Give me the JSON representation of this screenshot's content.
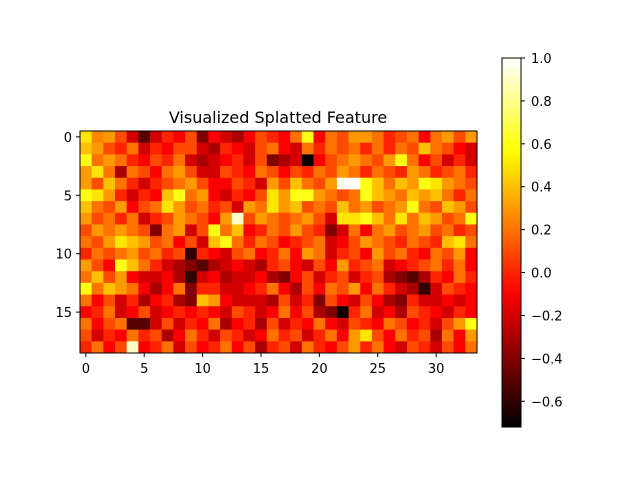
{
  "chart_data": {
    "type": "heatmap",
    "title": "Visualized Splatted Feature",
    "xlabel": "",
    "ylabel": "",
    "n_rows": 19,
    "n_cols": 34,
    "x_ticks": [
      0,
      5,
      10,
      15,
      20,
      25,
      30
    ],
    "y_ticks": [
      0,
      5,
      10,
      15
    ],
    "y_axis_direction": "top-to-bottom",
    "grid": false,
    "colormap": "hot",
    "colorbar": {
      "vmin": -0.72,
      "vmax": 1.0,
      "ticks": [
        -0.6,
        -0.4,
        -0.2,
        0.0,
        0.2,
        0.4,
        0.6,
        0.8,
        1.0
      ],
      "tick_labels": [
        "−0.6",
        "−0.4",
        "−0.2",
        "0.0",
        "0.2",
        "0.4",
        "0.6",
        "0.8",
        "1.0"
      ],
      "placement": "right"
    },
    "values": [
      [
        0.5,
        0.25,
        0.3,
        0.1,
        -0.2,
        -0.5,
        -0.2,
        0.0,
        -0.1,
        0.1,
        -0.4,
        -0.1,
        -0.2,
        -0.3,
        -0.1,
        0.1,
        0.0,
        -0.1,
        0.2,
        0.6,
        -0.1,
        0.2,
        0.1,
        0.3,
        0.3,
        0.2,
        0.0,
        0.1,
        0.2,
        -0.1,
        0.2,
        0.3,
        0.1,
        0.3
      ],
      [
        0.4,
        0.3,
        0.1,
        0.0,
        0.2,
        -0.2,
        0.0,
        -0.1,
        0.1,
        0.1,
        -0.2,
        -0.3,
        0.0,
        -0.1,
        -0.2,
        0.1,
        0.2,
        -0.1,
        -0.2,
        0.2,
        0.0,
        0.2,
        0.1,
        0.2,
        0.0,
        0.2,
        0.0,
        0.2,
        0.1,
        0.4,
        0.2,
        0.1,
        -0.1,
        -0.2
      ],
      [
        0.6,
        0.2,
        0.3,
        0.2,
        0.0,
        -0.1,
        0.1,
        0.0,
        0.2,
        -0.2,
        -0.3,
        -0.2,
        -0.1,
        0.0,
        -0.2,
        0.1,
        -0.4,
        -0.3,
        -0.2,
        -0.7,
        -0.1,
        0.1,
        0.2,
        0.3,
        0.2,
        0.1,
        0.3,
        0.6,
        0.2,
        -0.1,
        0.1,
        -0.2,
        0.0,
        -0.2
      ],
      [
        0.3,
        0.5,
        0.2,
        -0.3,
        0.2,
        0.1,
        -0.1,
        0.2,
        0.3,
        0.1,
        -0.2,
        -0.2,
        0.1,
        0.0,
        -0.1,
        0.2,
        0.1,
        -0.1,
        0.1,
        0.0,
        0.2,
        0.1,
        0.3,
        0.2,
        0.0,
        0.2,
        0.1,
        0.0,
        0.3,
        0.2,
        0.0,
        0.1,
        0.2,
        0.0
      ],
      [
        0.3,
        0.1,
        0.4,
        0.2,
        0.0,
        -0.2,
        0.0,
        0.1,
        0.2,
        0.3,
        0.1,
        -0.1,
        -0.1,
        0.1,
        0.0,
        -0.2,
        0.3,
        0.1,
        0.4,
        0.2,
        0.1,
        0.3,
        1.0,
        1.0,
        0.6,
        0.4,
        0.2,
        0.4,
        0.3,
        0.6,
        0.5,
        0.3,
        0.2,
        0.1
      ],
      [
        0.6,
        0.5,
        0.3,
        0.0,
        -0.2,
        0.0,
        -0.1,
        0.4,
        0.6,
        0.2,
        0.3,
        -0.1,
        -0.2,
        0.0,
        -0.1,
        0.1,
        0.5,
        0.3,
        0.6,
        0.6,
        0.3,
        0.2,
        0.1,
        0.2,
        0.6,
        0.4,
        0.3,
        0.2,
        0.4,
        0.3,
        0.4,
        0.2,
        0.0,
        0.2
      ],
      [
        0.4,
        0.2,
        0.1,
        0.3,
        -0.1,
        0.1,
        0.2,
        0.5,
        0.3,
        0.1,
        0.2,
        0.0,
        0.1,
        -0.2,
        0.3,
        0.2,
        0.5,
        0.3,
        0.4,
        0.1,
        0.2,
        0.1,
        0.4,
        0.2,
        0.3,
        0.1,
        0.2,
        0.3,
        0.6,
        0.2,
        0.1,
        0.4,
        0.3,
        0.1
      ],
      [
        0.3,
        0.1,
        0.2,
        0.0,
        0.2,
        -0.2,
        0.0,
        0.1,
        0.3,
        0.2,
        0.1,
        -0.1,
        0.3,
        0.9,
        0.1,
        0.3,
        0.2,
        0.1,
        0.2,
        0.3,
        0.1,
        -0.2,
        0.5,
        0.5,
        0.6,
        0.4,
        0.2,
        0.5,
        0.2,
        0.4,
        0.3,
        0.1,
        0.2,
        0.6
      ],
      [
        0.1,
        0.3,
        0.2,
        0.3,
        0.2,
        0.1,
        -0.4,
        0.2,
        0.3,
        -0.2,
        0.1,
        0.6,
        0.2,
        0.4,
        -0.1,
        0.0,
        0.2,
        0.1,
        0.3,
        0.1,
        0.0,
        -0.4,
        -0.2,
        0.2,
        -0.1,
        0.2,
        0.3,
        0.1,
        0.2,
        0.3,
        0.1,
        0.2,
        0.0,
        0.1
      ],
      [
        0.2,
        0.1,
        0.3,
        0.5,
        0.4,
        0.3,
        0.1,
        0.2,
        -0.1,
        0.1,
        -0.2,
        0.4,
        0.6,
        0.2,
        0.0,
        0.2,
        0.1,
        -0.1,
        0.0,
        0.1,
        0.2,
        -0.2,
        -0.1,
        0.1,
        0.3,
        0.2,
        0.1,
        0.0,
        0.2,
        0.1,
        0.0,
        0.4,
        0.5,
        0.2
      ],
      [
        0.0,
        0.2,
        0.1,
        0.2,
        0.3,
        0.1,
        0.2,
        0.0,
        0.1,
        -0.6,
        0.0,
        -0.1,
        -0.2,
        0.1,
        0.2,
        -0.1,
        0.0,
        0.2,
        -0.1,
        0.3,
        0.2,
        -0.2,
        0.0,
        0.1,
        -0.1,
        0.3,
        0.1,
        0.2,
        0.0,
        -0.1,
        0.2,
        0.1,
        0.3,
        -0.1
      ],
      [
        0.3,
        0.1,
        -0.1,
        0.6,
        0.4,
        0.2,
        0.0,
        -0.2,
        -0.3,
        -0.4,
        -0.5,
        -0.3,
        -0.2,
        -0.1,
        -0.2,
        -0.3,
        0.0,
        0.1,
        -0.1,
        -0.2,
        0.1,
        -0.1,
        0.3,
        0.0,
        0.1,
        0.2,
        -0.2,
        -0.1,
        0.0,
        0.1,
        0.2,
        0.0,
        0.2,
        -0.1
      ],
      [
        0.2,
        0.4,
        0.1,
        0.3,
        -0.1,
        -0.2,
        -0.2,
        -0.1,
        -0.3,
        -0.6,
        -0.2,
        -0.1,
        -0.3,
        -0.2,
        -0.2,
        -0.1,
        -0.3,
        -0.4,
        -0.1,
        0.1,
        -0.2,
        0.0,
        0.1,
        -0.2,
        0.0,
        0.1,
        -0.3,
        -0.4,
        -0.5,
        -0.3,
        0.0,
        -0.1,
        0.2,
        0.0
      ],
      [
        0.6,
        0.2,
        0.4,
        0.3,
        0.2,
        -0.1,
        -0.3,
        -0.1,
        0.2,
        -0.4,
        0.0,
        0.0,
        -0.2,
        -0.2,
        -0.1,
        0.0,
        0.2,
        -0.1,
        -0.3,
        0.1,
        -0.1,
        0.2,
        0.1,
        0.3,
        -0.1,
        0.2,
        0.0,
        -0.2,
        -0.3,
        -0.6,
        -0.2,
        0.1,
        0.0,
        -0.1
      ],
      [
        0.2,
        -0.1,
        0.1,
        -0.2,
        0.0,
        -0.3,
        -0.1,
        0.0,
        -0.3,
        -0.4,
        0.4,
        0.3,
        -0.1,
        -0.2,
        -0.2,
        -0.2,
        -0.3,
        0.1,
        -0.2,
        0.0,
        -0.4,
        0.1,
        -0.1,
        -0.2,
        0.1,
        -0.1,
        -0.3,
        -0.4,
        0.0,
        -0.2,
        -0.2,
        -0.1,
        -0.2,
        -0.1
      ],
      [
        -0.1,
        0.0,
        0.2,
        -0.2,
        -0.1,
        0.1,
        -0.2,
        -0.1,
        0.0,
        -0.1,
        0.0,
        -0.1,
        -0.2,
        0.1,
        0.0,
        -0.2,
        -0.1,
        0.2,
        -0.1,
        0.1,
        -0.3,
        -0.4,
        -0.7,
        0.0,
        0.2,
        -0.2,
        -0.1,
        -0.3,
        0.1,
        0.0,
        -0.1,
        -0.2,
        0.0,
        -0.1
      ],
      [
        0.2,
        -0.1,
        0.1,
        0.2,
        -0.5,
        -0.5,
        -0.2,
        0.1,
        -0.2,
        0.0,
        -0.1,
        0.2,
        -0.3,
        -0.1,
        0.0,
        -0.3,
        0.1,
        -0.2,
        0.0,
        -0.1,
        0.2,
        -0.1,
        -0.2,
        0.1,
        0.0,
        -0.1,
        0.2,
        0.1,
        -0.1,
        0.0,
        -0.2,
        0.1,
        0.3,
        0.6
      ],
      [
        0.1,
        -0.2,
        0.0,
        -0.1,
        0.2,
        0.0,
        0.1,
        -0.3,
        -0.1,
        0.2,
        0.0,
        -0.2,
        0.1,
        0.0,
        -0.2,
        -0.1,
        0.2,
        0.0,
        0.1,
        -0.2,
        0.0,
        0.2,
        -0.1,
        0.3,
        0.5,
        0.1,
        -0.1,
        0.2,
        0.0,
        0.1,
        -0.3,
        0.2,
        -0.1,
        0.3
      ],
      [
        0.0,
        0.2,
        -0.1,
        0.1,
        0.9,
        -0.1,
        0.0,
        0.2,
        -0.2,
        0.1,
        -0.1,
        0.0,
        0.2,
        -0.1,
        0.1,
        -0.3,
        0.0,
        0.1,
        -0.2,
        0.2,
        0.0,
        -0.1,
        0.1,
        0.3,
        0.0,
        0.2,
        -0.1,
        -0.2,
        0.1,
        0.0,
        -0.2,
        0.1,
        -0.1,
        0.2
      ]
    ]
  }
}
